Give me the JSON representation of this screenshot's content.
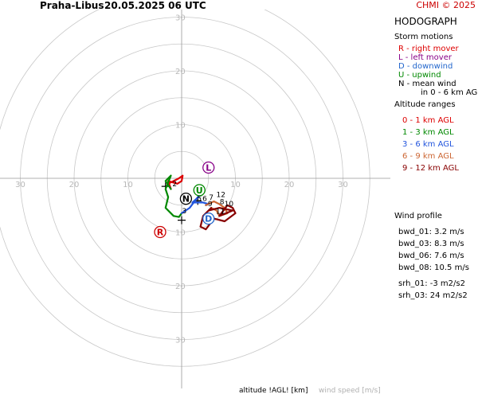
{
  "header": {
    "station": "Praha-Libus",
    "datetime": "20.05.2025 06 UTC",
    "copyright": "CHMI © 2025"
  },
  "colors": {
    "grid": "#c8c8c8",
    "ring_label": "#b8b8b8",
    "layer_0_1": "#dd0000",
    "layer_1_3": "#008800",
    "layer_3_6": "#2255dd",
    "layer_6_9": "#cc6633",
    "layer_9_12": "#880000",
    "mean_wind": "#000000",
    "right_mover": "#cc0000",
    "left_mover": "#880088",
    "downwind": "#2266cc",
    "upwind": "#008800"
  },
  "legend": {
    "title": "HODOGRAPH",
    "storm_title": "Storm motions",
    "storm_items": [
      {
        "text": "R - right mover",
        "color": "#dd0000"
      },
      {
        "text": "L - left mover",
        "color": "#880088"
      },
      {
        "text": "D - downwind",
        "color": "#2266cc"
      },
      {
        "text": "U - upwind",
        "color": "#008800"
      },
      {
        "text": "N - mean wind",
        "color": "#000000"
      },
      {
        "text": "in 0 - 6 km AGL",
        "color": "#000000"
      }
    ],
    "alt_title": "Altitude ranges",
    "alt_items": [
      {
        "text": "0 - 1 km AGL",
        "color": "#dd0000"
      },
      {
        "text": "1 - 3 km AGL",
        "color": "#008800"
      },
      {
        "text": "3 - 6 km AGL",
        "color": "#2255dd"
      },
      {
        "text": "6 - 9 km AGL",
        "color": "#cc6633"
      },
      {
        "text": "9 - 12 km AGL",
        "color": "#880000"
      }
    ]
  },
  "wind_profile": {
    "title": "Wind profile",
    "items": [
      "bwd_01: 3.2 m/s",
      "bwd_03: 8.3 m/s",
      "bwd_06: 7.6 m/s",
      "bwd_08: 10.5 m/s",
      "srh_01: -3 m2/s2",
      "srh_03: 24 m2/s2"
    ]
  },
  "footer": {
    "altitude": "altitude !AGL! [km]",
    "wind_speed": "wind speed [m/s]"
  },
  "chart_data": {
    "type": "line",
    "title": "HODOGRAPH",
    "axis_range": [
      -30,
      30
    ],
    "rings": [
      5,
      10,
      15,
      20,
      25,
      30,
      35
    ],
    "ring_labels": [
      10,
      20,
      30
    ],
    "xlabel": "altitude !AGL! [km]",
    "ylabel": "wind speed [m/s]",
    "grid": true,
    "legend_position": "right",
    "series": [
      {
        "name": "0 - 1 km AGL",
        "color_key": "layer_0_1",
        "u": [
          -2.5,
          -0.5,
          0.2,
          0.0,
          -0.8,
          -2.5,
          -2.0
        ],
        "v": [
          -1.0,
          0.0,
          0.5,
          -0.5,
          -1.0,
          -0.5,
          -2.0
        ]
      },
      {
        "name": "1 - 3 km AGL",
        "color_key": "layer_1_3",
        "u": [
          -2.0,
          -3.0,
          -2.0,
          -3.0,
          -2.5,
          -3.0,
          -1.5,
          -0.5,
          0.0
        ],
        "v": [
          -2.0,
          -0.5,
          0.5,
          -2.0,
          -3.5,
          -5.5,
          -7.0,
          -7.2,
          -6.5
        ]
      },
      {
        "name": "3 - 6 km AGL",
        "color_key": "layer_3_6",
        "u": [
          0.0,
          1.5,
          3.0,
          4.2,
          2.0,
          4.0,
          5.0,
          4.5
        ],
        "v": [
          -6.5,
          -5.5,
          -3.5,
          -2.5,
          -4.5,
          -4.5,
          -4.8,
          -5.0
        ]
      },
      {
        "name": "6 - 9 km AGL",
        "color_key": "layer_6_9",
        "u": [
          4.5,
          6.0,
          7.0,
          8.0,
          8.5,
          7.0,
          6.5,
          5.5
        ],
        "v": [
          -5.0,
          -4.3,
          -4.8,
          -5.5,
          -6.5,
          -7.0,
          -6.0,
          -5.5
        ]
      },
      {
        "name": "9 - 12 km AGL",
        "color_key": "layer_9_12",
        "u": [
          5.5,
          4.0,
          3.5,
          4.5,
          6.0,
          8.0,
          10.0,
          9.5,
          8.5,
          7.0,
          9.5,
          7.0,
          5.0
        ],
        "v": [
          -5.5,
          -7.0,
          -9.0,
          -9.5,
          -7.5,
          -8.0,
          -6.5,
          -5.5,
          -5.0,
          -7.0,
          -6.0,
          -5.5,
          -6.0
        ]
      }
    ],
    "height_labels": [
      {
        "text": "2",
        "u": -1.3,
        "v": -1.5
      },
      {
        "text": "3",
        "u": 0.5,
        "v": -6.5
      },
      {
        "text": "5",
        "u": 3.3,
        "v": -4.2
      },
      {
        "text": "6",
        "u": 4.3,
        "v": -4.2
      },
      {
        "text": "7",
        "u": 5.5,
        "v": -4.0
      },
      {
        "text": "8",
        "u": 7.5,
        "v": -4.8
      },
      {
        "text": "9",
        "u": 5.3,
        "v": -5.2
      },
      {
        "text": "10",
        "u": 8.8,
        "v": -5.2
      },
      {
        "text": "11",
        "u": 7.2,
        "v": -6.6
      },
      {
        "text": "12",
        "u": 7.3,
        "v": -3.5
      }
    ],
    "storm_motions": [
      {
        "label": "R",
        "u": -4.0,
        "v": -10.0,
        "color_key": "right_mover"
      },
      {
        "label": "L",
        "u": 5.0,
        "v": 2.0,
        "color_key": "left_mover"
      },
      {
        "label": "D",
        "u": 5.0,
        "v": -7.5,
        "color_key": "downwind"
      },
      {
        "label": "U",
        "u": 3.3,
        "v": -2.2,
        "color_key": "upwind"
      },
      {
        "label": "N",
        "u": 0.8,
        "v": -3.8,
        "color_key": "mean_wind"
      }
    ],
    "crosses": [
      {
        "u": -3.0,
        "v": -1.5
      },
      {
        "u": 0.0,
        "v": -7.8
      },
      {
        "u": 3.0,
        "v": -4.2
      }
    ]
  }
}
